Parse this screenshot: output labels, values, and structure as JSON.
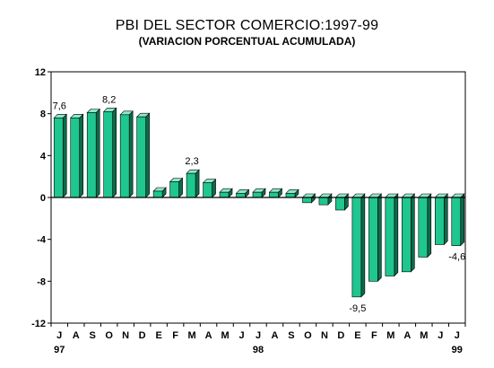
{
  "chart_data": {
    "type": "bar",
    "title": "PBI DEL SECTOR COMERCIO:1997-99",
    "subtitle": "(VARIACION PORCENTUAL ACUMULADA)",
    "xlabel": "",
    "ylabel": "",
    "ylim": [
      -12,
      12
    ],
    "yticks": [
      12,
      8,
      4,
      0,
      -4,
      -8,
      -12
    ],
    "grid": false,
    "legend": "none",
    "categories": [
      "J",
      "A",
      "S",
      "O",
      "N",
      "D",
      "E",
      "F",
      "M",
      "A",
      "M",
      "J",
      "J",
      "A",
      "S",
      "O",
      "N",
      "D",
      "E",
      "F",
      "M",
      "A",
      "M",
      "J",
      "J"
    ],
    "year_labels": [
      {
        "index": 0,
        "label": "97"
      },
      {
        "index": 12,
        "label": "98"
      },
      {
        "index": 24,
        "label": "99"
      }
    ],
    "values": [
      7.6,
      7.6,
      8.1,
      8.2,
      7.9,
      7.7,
      0.6,
      1.5,
      2.3,
      1.4,
      0.5,
      0.4,
      0.5,
      0.5,
      0.4,
      -0.5,
      -0.7,
      -1.2,
      -9.5,
      -8.0,
      -7.5,
      -7.1,
      -5.7,
      -4.5,
      -4.6
    ],
    "data_labels": [
      {
        "index": 0,
        "text": "7,6"
      },
      {
        "index": 3,
        "text": "8,2"
      },
      {
        "index": 8,
        "text": "2,3"
      },
      {
        "index": 18,
        "text": "-9,5"
      },
      {
        "index": 24,
        "text": "-4,6"
      }
    ],
    "colors": {
      "bar_front": "#1fc68f",
      "bar_side": "#0c6b4a",
      "bar_top": "#8fe7c6",
      "axis": "#000000"
    }
  }
}
